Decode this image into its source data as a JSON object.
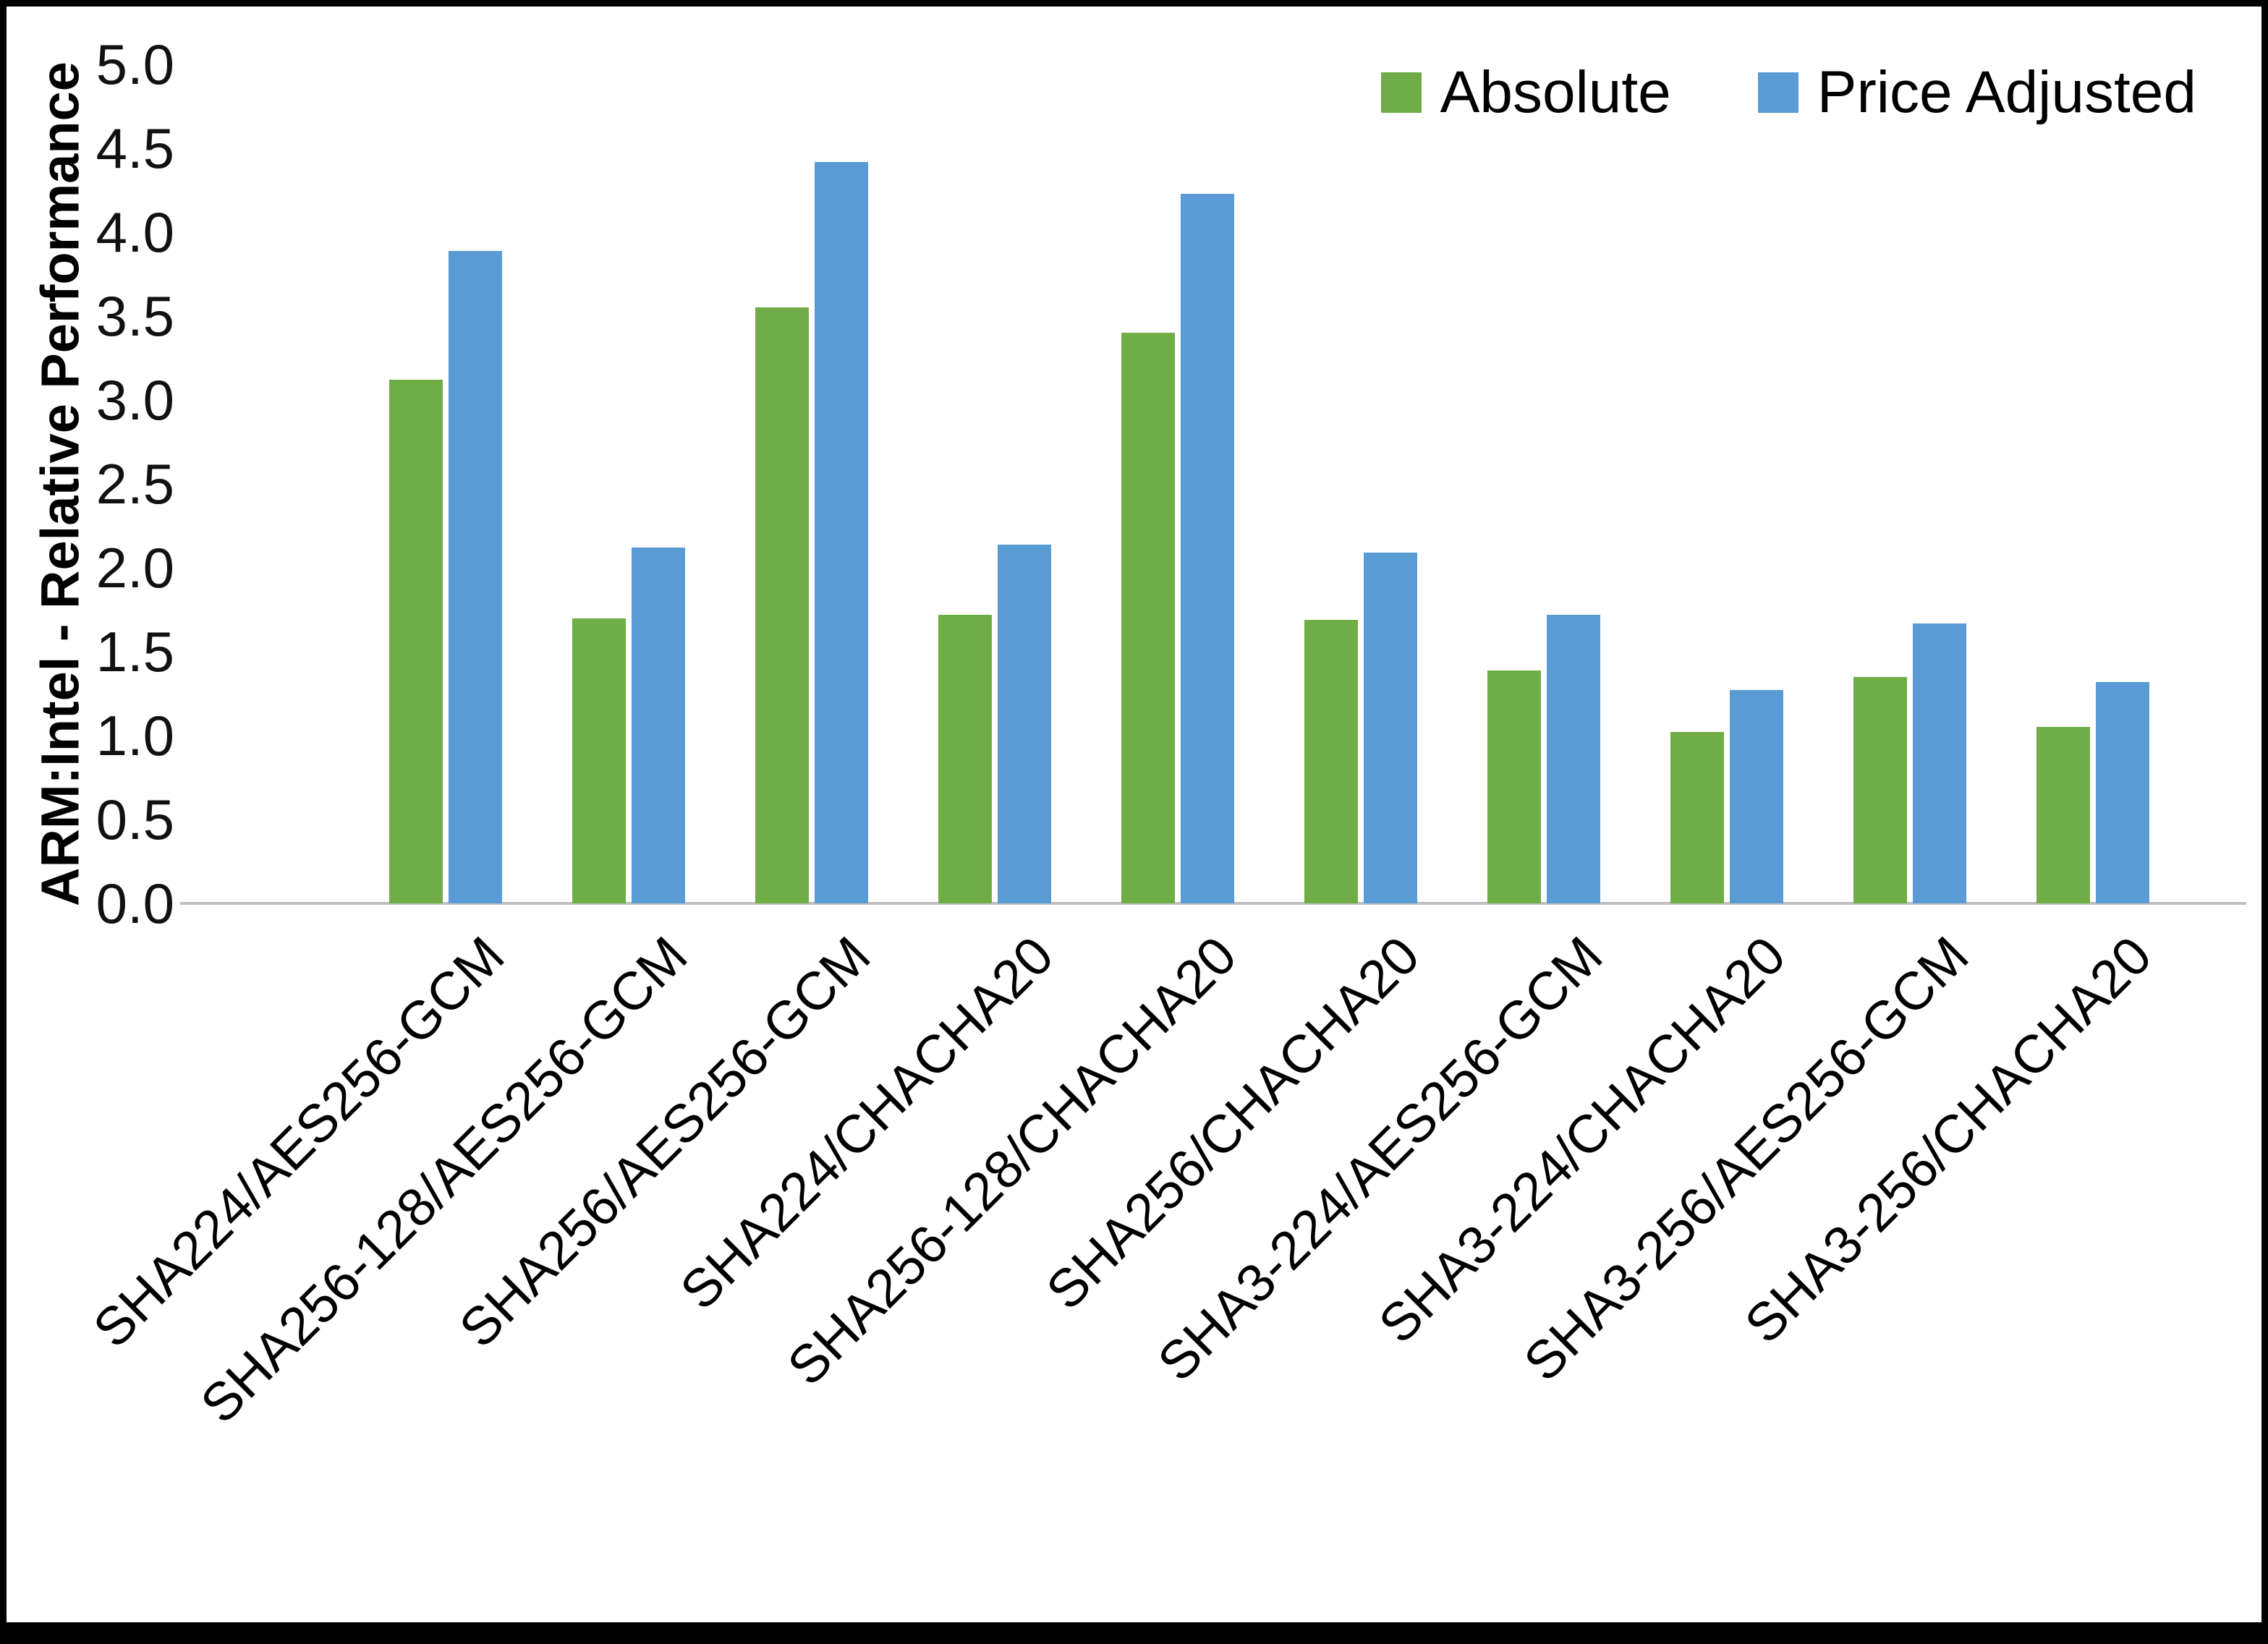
{
  "chart_data": {
    "type": "bar",
    "title": "",
    "ylabel": "ARM:Intel - Relative Performance",
    "xlabel": "",
    "ylim": [
      0,
      5
    ],
    "yticks": [
      "0.0",
      "0.5",
      "1.0",
      "1.5",
      "2.0",
      "2.5",
      "3.0",
      "3.5",
      "4.0",
      "4.5",
      "5.0"
    ],
    "grid": false,
    "legend_position": "top-right",
    "categories": [
      "SHA224/AES256-GCM",
      "SHA256-128/AES256-GCM",
      "SHA256/AES256-GCM",
      "SHA224/CHACHA20",
      "SHA256-128/CHACHA20",
      "SHA256/CHACHA20",
      "SHA3-224/AES256-GCM",
      "SHA3-224/CHACHA20",
      "SHA3-256/AES256-GCM",
      "SHA3-256/CHACHA20"
    ],
    "series": [
      {
        "name": "Absolute",
        "color": "#70AD47",
        "values": [
          3.12,
          1.7,
          3.55,
          1.72,
          3.4,
          1.69,
          1.39,
          1.02,
          1.35,
          1.05
        ]
      },
      {
        "name": "Price Adjusted",
        "color": "#5B9BD5",
        "values": [
          3.89,
          2.12,
          4.42,
          2.14,
          4.23,
          2.09,
          1.72,
          1.27,
          1.67,
          1.32
        ]
      }
    ],
    "colors": {
      "absolute": "#70AD47",
      "price_adjusted": "#5B9BD5",
      "axis_line": "#BFBFBF"
    }
  }
}
